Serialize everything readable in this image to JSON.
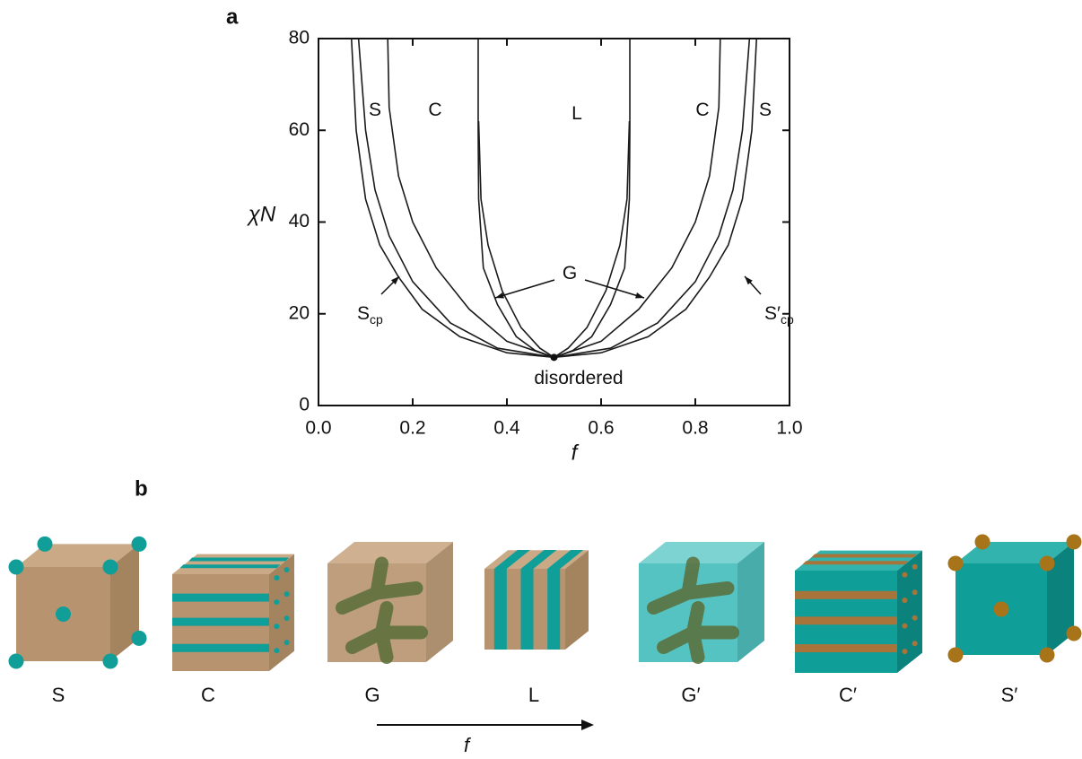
{
  "chart_data": {
    "type": "line",
    "panel_label": "a",
    "xlabel": "f",
    "ylabel": "χN",
    "xlim": [
      0,
      1
    ],
    "ylim": [
      0,
      80
    ],
    "xticks": [
      {
        "value": 0,
        "label": "0.0"
      },
      0.2,
      0.4,
      0.6,
      0.8,
      {
        "value": 1,
        "label": "1.0"
      }
    ],
    "yticks": [
      0,
      20,
      40,
      60,
      80
    ],
    "series": [
      {
        "color": "#1a1a1a",
        "x": [
          0.07,
          0.08,
          0.1,
          0.13,
          0.17,
          0.22,
          0.3,
          0.4,
          0.5
        ],
        "values": [
          80,
          60,
          45,
          35,
          28,
          21,
          15,
          11.5,
          10.5
        ]
      },
      {
        "color": "#1a1a1a",
        "x": [
          0.085,
          0.1,
          0.12,
          0.15,
          0.2,
          0.28,
          0.38,
          0.5
        ],
        "values": [
          80,
          60,
          47,
          37,
          27,
          18,
          12.5,
          10.5
        ]
      },
      {
        "color": "#1a1a1a",
        "x": [
          0.147,
          0.15,
          0.17,
          0.2,
          0.25,
          0.32,
          0.4,
          0.5
        ],
        "values": [
          80,
          65,
          50,
          40,
          30,
          21,
          14,
          10.5
        ]
      },
      {
        "color": "#1a1a1a",
        "x": [
          0.339,
          0.339,
          0.34,
          0.35,
          0.38,
          0.42,
          0.46,
          0.5
        ],
        "values": [
          80,
          60,
          45,
          30,
          22,
          15,
          12,
          10.5
        ]
      },
      {
        "color": "#1a1a1a",
        "x": [
          0.34,
          0.345,
          0.36,
          0.39,
          0.43,
          0.47,
          0.5
        ],
        "values": [
          62,
          45,
          35,
          25,
          17,
          12.5,
          10.5
        ]
      },
      {
        "color": "#1a1a1a",
        "x": [
          0.93,
          0.92,
          0.9,
          0.87,
          0.83,
          0.78,
          0.7,
          0.6,
          0.5
        ],
        "values": [
          80,
          60,
          45,
          35,
          28,
          21,
          15,
          11.5,
          10.5
        ]
      },
      {
        "color": "#1a1a1a",
        "x": [
          0.915,
          0.9,
          0.88,
          0.85,
          0.8,
          0.72,
          0.62,
          0.5
        ],
        "values": [
          80,
          60,
          47,
          37,
          27,
          18,
          12.5,
          10.5
        ]
      },
      {
        "color": "#1a1a1a",
        "x": [
          0.853,
          0.85,
          0.83,
          0.8,
          0.75,
          0.68,
          0.6,
          0.5
        ],
        "values": [
          80,
          65,
          50,
          40,
          30,
          21,
          14,
          10.5
        ]
      },
      {
        "color": "#1a1a1a",
        "x": [
          0.661,
          0.661,
          0.66,
          0.65,
          0.62,
          0.58,
          0.54,
          0.5
        ],
        "values": [
          80,
          60,
          45,
          30,
          22,
          15,
          12,
          10.5
        ]
      },
      {
        "color": "#1a1a1a",
        "x": [
          0.66,
          0.655,
          0.64,
          0.61,
          0.57,
          0.53,
          0.5
        ],
        "values": [
          62,
          45,
          35,
          25,
          17,
          12.5,
          10.5
        ]
      }
    ],
    "critical_point": {
      "x": 0.5,
      "y": 10.5
    },
    "annotations": [
      {
        "text": "S"
      },
      {
        "text": "C"
      },
      {
        "text": "L"
      },
      {
        "text": "C"
      },
      {
        "text": "S"
      },
      {
        "text": "G"
      },
      {
        "text": "disordered"
      },
      {
        "text": "S",
        "sub": "cp"
      },
      {
        "text": "S′",
        "sub": "cp"
      }
    ]
  },
  "panel_b": {
    "label": "b",
    "structures": [
      "S",
      "C",
      "G",
      "L",
      "G′",
      "C′",
      "S′"
    ],
    "arrow_label": "f"
  }
}
